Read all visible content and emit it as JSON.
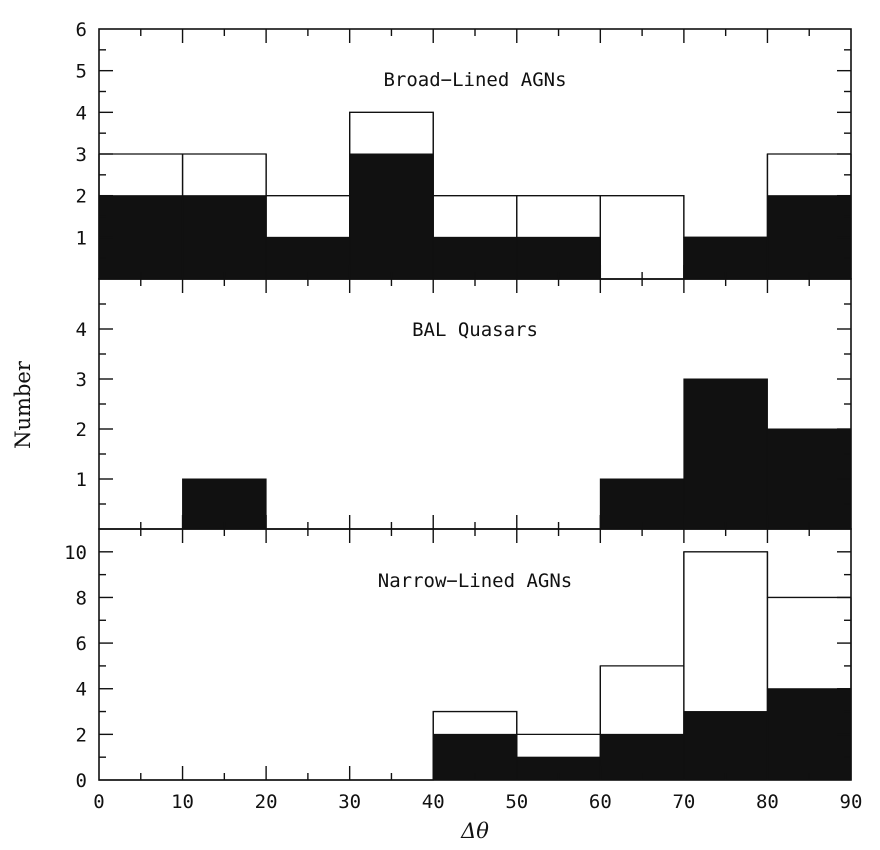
{
  "chart_data": [
    {
      "type": "bar",
      "panel_title": "Broad−Lined AGNs",
      "x_edges": [
        0,
        10,
        20,
        30,
        40,
        50,
        60,
        70,
        80,
        90
      ],
      "series": [
        {
          "style": "open outline",
          "values": [
            3,
            3,
            2,
            4,
            2,
            2,
            2,
            1,
            3
          ]
        },
        {
          "style": "filled black",
          "values": [
            2,
            2,
            1,
            3,
            1,
            1,
            0,
            1,
            2
          ]
        }
      ],
      "ylim": [
        0,
        6
      ],
      "yticks": [
        1,
        2,
        3,
        4,
        5,
        6
      ]
    },
    {
      "type": "bar",
      "panel_title": "BAL Quasars",
      "x_edges": [
        0,
        10,
        20,
        30,
        40,
        50,
        60,
        70,
        80,
        90
      ],
      "series": [
        {
          "style": "filled black",
          "values": [
            0,
            1,
            0,
            0,
            0,
            0,
            1,
            3,
            2
          ]
        }
      ],
      "ylim": [
        0,
        5
      ],
      "yticks": [
        1,
        2,
        3,
        4
      ]
    },
    {
      "type": "bar",
      "panel_title": "Narrow−Lined AGNs",
      "x_edges": [
        0,
        10,
        20,
        30,
        40,
        50,
        60,
        70,
        80,
        90
      ],
      "series": [
        {
          "style": "open outline",
          "values": [
            0,
            0,
            0,
            0,
            3,
            2,
            5,
            10,
            8
          ]
        },
        {
          "style": "filled black",
          "values": [
            0,
            0,
            0,
            0,
            2,
            1,
            2,
            3,
            4
          ]
        }
      ],
      "ylim": [
        0,
        11
      ],
      "yticks": [
        0,
        2,
        4,
        6,
        8,
        10
      ]
    }
  ],
  "xaxis": {
    "label": "Δθ",
    "ticks": [
      0,
      10,
      20,
      30,
      40,
      50,
      60,
      70,
      80,
      90
    ],
    "xlim": [
      0,
      90
    ]
  },
  "yaxis": {
    "label": "Number"
  }
}
